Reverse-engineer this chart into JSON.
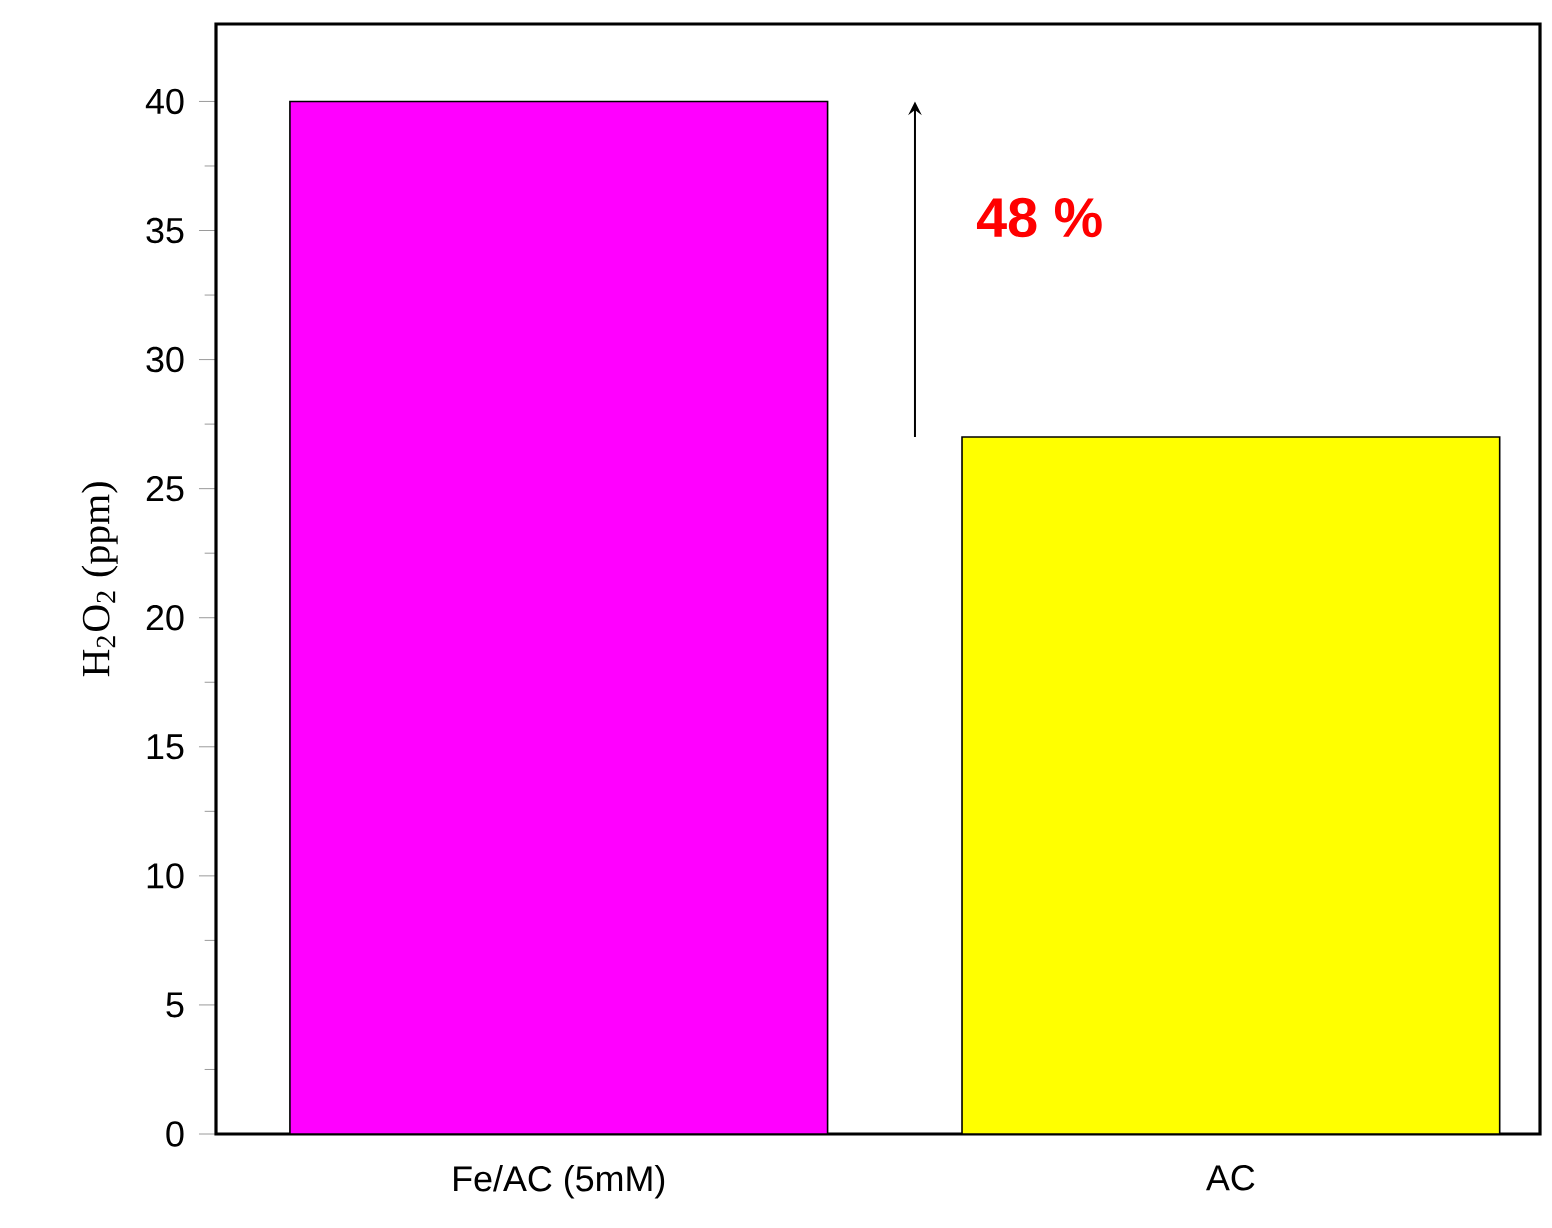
{
  "chart_data": {
    "type": "bar",
    "categories": [
      "Fe/AC (5mM)",
      "AC"
    ],
    "values": [
      40,
      27
    ],
    "colors": [
      "#ff00ff",
      "#ffff00"
    ],
    "ylabel": "H$_{2}$O$_{2}$ (ppm)",
    "ylim": [
      0,
      43
    ],
    "yticks": [
      0,
      5,
      10,
      15,
      20,
      25,
      30,
      35,
      40
    ],
    "annotations": [
      "48 %"
    ],
    "grid": false
  }
}
